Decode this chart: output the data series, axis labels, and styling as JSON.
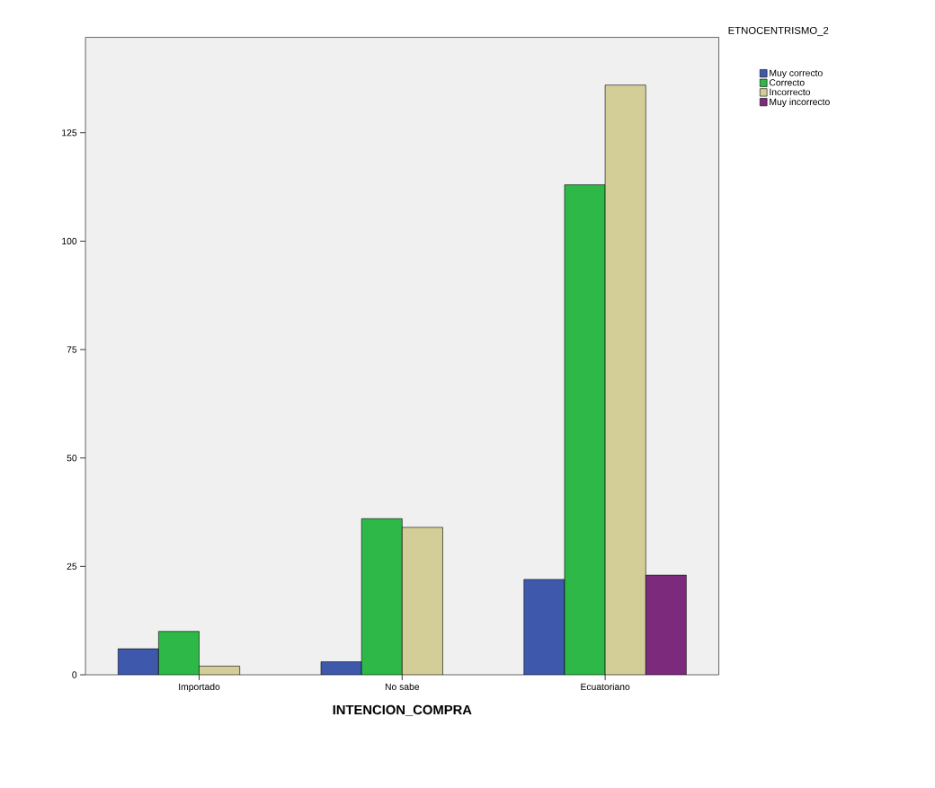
{
  "chart_data": {
    "type": "bar",
    "xlabel": "INTENCION_COMPRA",
    "legend_title": "ETNOCENTRISMO_2",
    "categories": [
      "Importado",
      "No sabe",
      "Ecuatoriano"
    ],
    "series": [
      {
        "name": "Muy correcto",
        "color": "#3e58ac",
        "values": [
          6,
          3,
          22
        ]
      },
      {
        "name": "Correcto",
        "color": "#2eb848",
        "values": [
          10,
          36,
          113
        ]
      },
      {
        "name": "Incorrecto",
        "color": "#d3ce97",
        "values": [
          2,
          34,
          136
        ]
      },
      {
        "name": "Muy incorrecto",
        "color": "#7b2a7c",
        "values": [
          null,
          null,
          23
        ]
      }
    ],
    "ylim": [
      0,
      147
    ],
    "yticks": [
      0,
      25,
      50,
      75,
      100,
      125
    ],
    "grid": false,
    "legend": "top right"
  }
}
